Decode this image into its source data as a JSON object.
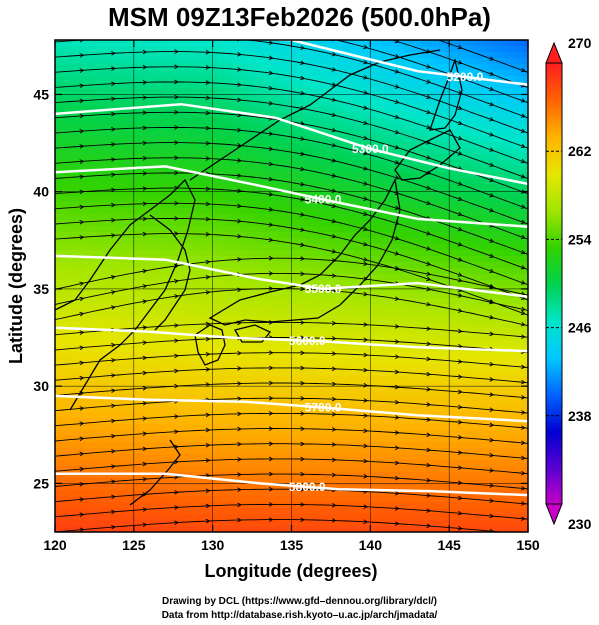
{
  "title": "MSM 09Z13Feb2026 (500.0hPa)",
  "xaxis": {
    "label": "Longitude (degrees)",
    "range": [
      120,
      150
    ],
    "ticks": [
      "120",
      "125",
      "130",
      "135",
      "140",
      "145",
      "150"
    ]
  },
  "yaxis": {
    "label": "Latitude  (degrees)",
    "range": [
      22.5,
      47.8
    ],
    "ticks": [
      "25",
      "30",
      "35",
      "40",
      "45"
    ]
  },
  "colorbar": {
    "min": 230,
    "max": 270,
    "ticks": [
      "230",
      "238",
      "246",
      "254",
      "262",
      "270"
    ],
    "colors": [
      "#c800c8",
      "#5a00d2",
      "#0000d2",
      "#0064ff",
      "#00c8ff",
      "#00e6c8",
      "#00d250",
      "#32d200",
      "#a0e600",
      "#e6e600",
      "#ffb400",
      "#ff6400",
      "#ff1e1e"
    ]
  },
  "contours": [
    {
      "label": "5200.0",
      "lat_at_lon": [
        [
          126,
          48.0
        ],
        [
          135,
          47.8
        ],
        [
          143,
          46.2
        ],
        [
          150,
          45.5
        ]
      ],
      "label_lon": 146
    },
    {
      "label": "5300.0",
      "lat_at_lon": [
        [
          120,
          44.0
        ],
        [
          128,
          44.5
        ],
        [
          134,
          43.8
        ],
        [
          140,
          42.2
        ],
        [
          145,
          41.2
        ],
        [
          150,
          40.4
        ]
      ],
      "label_lon": 140
    },
    {
      "label": "5400.0",
      "lat_at_lon": [
        [
          120,
          41.0
        ],
        [
          127,
          41.3
        ],
        [
          133,
          40.3
        ],
        [
          137,
          39.6
        ],
        [
          143,
          38.6
        ],
        [
          150,
          38.2
        ]
      ],
      "label_lon": 137
    },
    {
      "label": "5500.0",
      "lat_at_lon": [
        [
          120,
          36.7
        ],
        [
          127,
          36.5
        ],
        [
          133,
          35.5
        ],
        [
          137,
          35.0
        ],
        [
          143,
          35.3
        ],
        [
          150,
          34.6
        ]
      ],
      "label_lon": 137
    },
    {
      "label": "5600.0",
      "lat_at_lon": [
        [
          120,
          33.0
        ],
        [
          126,
          32.8
        ],
        [
          131,
          32.5
        ],
        [
          137,
          32.3
        ],
        [
          143,
          32.0
        ],
        [
          150,
          31.8
        ]
      ],
      "label_lon": 136
    },
    {
      "label": "5700.0",
      "lat_at_lon": [
        [
          120,
          29.5
        ],
        [
          126,
          29.3
        ],
        [
          132,
          29.2
        ],
        [
          137,
          28.9
        ],
        [
          143,
          28.5
        ],
        [
          150,
          28.2
        ]
      ],
      "label_lon": 137
    },
    {
      "label": "5800.0",
      "lat_at_lon": [
        [
          120,
          25.5
        ],
        [
          127,
          25.5
        ],
        [
          133,
          25.0
        ],
        [
          138,
          24.7
        ],
        [
          144,
          24.6
        ],
        [
          150,
          24.4
        ]
      ],
      "label_lon": 136
    }
  ],
  "credits": {
    "line1": "Drawing by DCL (https://www.gfd–dennou.org/library/dcl/)",
    "line2": "Data from http://database.rish.kyoto–u.ac.jp/arch/jmadata/"
  },
  "icons": {
    "colorbar_top": "triangle-up-icon",
    "colorbar_bottom": "triangle-down-icon"
  }
}
